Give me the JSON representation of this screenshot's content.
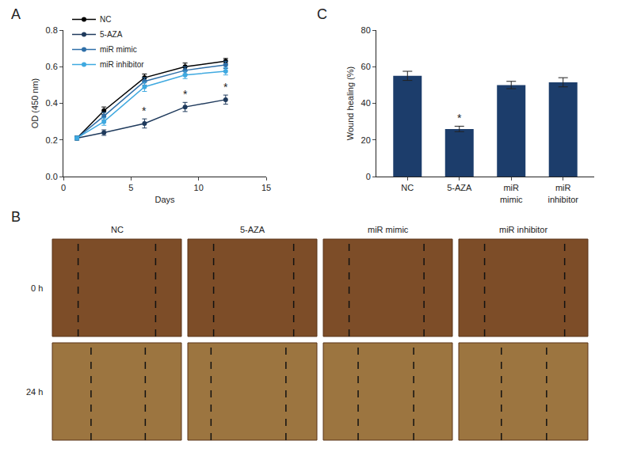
{
  "chart_data": [
    {
      "type": "line",
      "title": "A",
      "x": [
        1,
        3,
        6,
        9,
        12
      ],
      "series": [
        {
          "name": "NC",
          "color": "#000000",
          "values": [
            0.21,
            0.36,
            0.54,
            0.6,
            0.63
          ],
          "errors": [
            0.01,
            0.02,
            0.02,
            0.02,
            0.015
          ]
        },
        {
          "name": "5-AZA",
          "color": "#1f3a5c",
          "values": [
            0.21,
            0.24,
            0.29,
            0.38,
            0.42
          ],
          "errors": [
            0.01,
            0.015,
            0.025,
            0.025,
            0.025
          ]
        },
        {
          "name": "miR mimic",
          "color": "#2f6fa8",
          "values": [
            0.21,
            0.33,
            0.52,
            0.58,
            0.61
          ],
          "errors": [
            0.01,
            0.02,
            0.02,
            0.02,
            0.02
          ]
        },
        {
          "name": "miR inhibitor",
          "color": "#3fa9e0",
          "values": [
            0.21,
            0.3,
            0.49,
            0.555,
            0.575
          ],
          "errors": [
            0.01,
            0.02,
            0.025,
            0.02,
            0.02
          ]
        }
      ],
      "xlabel": "Days",
      "ylabel": "OD (450 nm)",
      "xlim": [
        0,
        15
      ],
      "xticks": [
        0,
        5,
        10,
        15
      ],
      "ylim": [
        0,
        0.8
      ],
      "yticks": [
        {
          "value": 0,
          "label": "0.0"
        },
        0.2,
        0.4,
        0.6,
        0.8
      ],
      "grid": false,
      "legend": "upper left",
      "marker": "circle",
      "annotations": [
        {
          "series": "5-AZA",
          "x": 6,
          "text": "*"
        },
        {
          "series": "5-AZA",
          "x": 9,
          "text": "*"
        },
        {
          "series": "5-AZA",
          "x": 12,
          "text": "*"
        }
      ]
    },
    {
      "type": "image_grid",
      "title": "B",
      "columns": [
        "NC",
        "5-AZA",
        "miR mimic",
        "miR inhibitor"
      ],
      "rows": [
        "0 h",
        "24 h"
      ]
    },
    {
      "type": "bar",
      "title": "C",
      "categories": [
        "NC",
        "5-AZA",
        "miR mimic",
        "miR inhibitor"
      ],
      "values": [
        55,
        26,
        50,
        51.5
      ],
      "errors": [
        2.5,
        1.5,
        2,
        2.5
      ],
      "color": "#1c3d6b",
      "ylabel": "Wound healing (%)",
      "ylim": [
        0,
        80
      ],
      "yticks": [
        0,
        20,
        40,
        60,
        80
      ],
      "grid": false,
      "annotations": [
        {
          "category": "5-AZA",
          "text": "*"
        }
      ]
    }
  ]
}
